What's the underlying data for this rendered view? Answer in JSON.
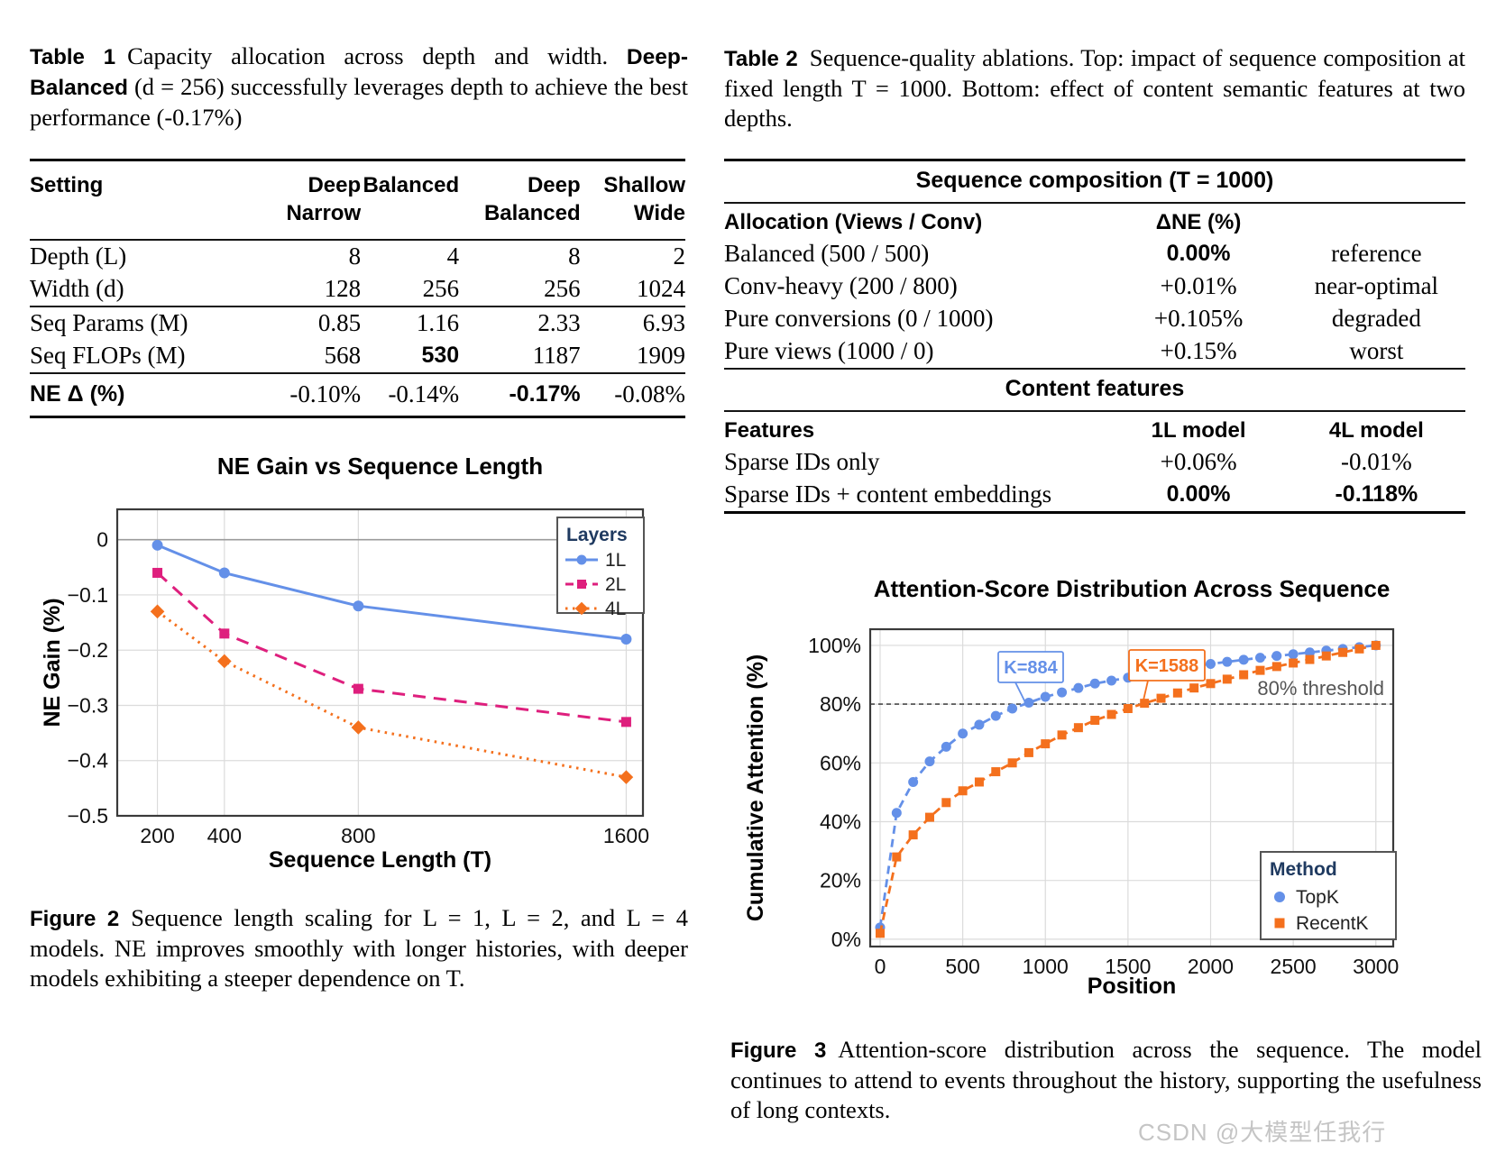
{
  "watermark": "CSDN @大模型任我行",
  "table1": {
    "caption_label": "Table 1",
    "caption_text1": "Capacity allocation across depth and width. ",
    "caption_bold": "Deep-Balanced",
    "caption_text2": " (d = 256) successfully leverages depth to achieve the best performance (-0.17%)",
    "headers": [
      "Setting",
      "Deep\nNarrow",
      "Balanced",
      "Deep\nBalanced",
      "Shallow\nWide"
    ],
    "groups": [
      [
        [
          "Depth (L)",
          "8",
          "4",
          "8",
          "2"
        ],
        [
          "Width (d)",
          "128",
          "256",
          "256",
          "1024"
        ]
      ],
      [
        [
          "Seq Params (M)",
          "0.85",
          "1.16",
          "2.33",
          "6.93"
        ],
        [
          "Seq FLOPs (M)",
          "568",
          {
            "t": "530",
            "b": true
          },
          "1187",
          "1909"
        ]
      ],
      [
        [
          {
            "t": "NE Δ (%)",
            "b": true
          },
          "-0.10%",
          "-0.14%",
          {
            "t": "-0.17%",
            "b": true
          },
          "-0.08%"
        ]
      ]
    ]
  },
  "table2": {
    "caption_label": "Table 2",
    "caption_text": "Sequence-quality ablations. Top: impact of sequence composition at fixed length T = 1000. Bottom: effect of content semantic features at two depths.",
    "sections": [
      {
        "title": "Sequence composition (T = 1000)",
        "headers": [
          "Allocation (Views / Conv)",
          "ΔNE (%)",
          ""
        ],
        "rows": [
          [
            "Balanced (500 / 500)",
            {
              "t": "0.00%",
              "b": true
            },
            "reference"
          ],
          [
            "Conv-heavy (200 / 800)",
            "+0.01%",
            "near-optimal"
          ],
          [
            "Pure conversions (0 / 1000)",
            "+0.105%",
            "degraded"
          ],
          [
            "Pure views (1000 / 0)",
            "+0.15%",
            "worst"
          ]
        ]
      },
      {
        "title": "Content features",
        "headers": [
          "Features",
          "1L model",
          "4L model"
        ],
        "rows": [
          [
            "Sparse IDs only",
            "+0.06%",
            "-0.01%"
          ],
          [
            "Sparse IDs + content embeddings",
            {
              "t": "0.00%",
              "b": true
            },
            {
              "t": "-0.118%",
              "b": true
            }
          ]
        ]
      }
    ]
  },
  "fig2_caption": {
    "label": "Figure 2",
    "text": "Sequence length scaling for L = 1, L = 2, and L = 4 models. NE improves smoothly with longer histories, with deeper models exhibiting a steeper dependence on T."
  },
  "fig3_caption": {
    "label": "Figure 3",
    "text": "Attention-score distribution across the sequence. The model continues to attend to events throughout the history, supporting the usefulness of long contexts."
  },
  "chart_data": [
    {
      "type": "line",
      "title": "NE Gain vs Sequence Length",
      "xlabel": "Sequence Length (T)",
      "ylabel": "NE Gain (%)",
      "x": [
        200,
        400,
        800,
        1600
      ],
      "series": [
        {
          "name": "1L",
          "color": "#6490E8",
          "marker": "circle",
          "dash": "solid",
          "values": [
            -0.01,
            -0.06,
            -0.12,
            -0.18
          ]
        },
        {
          "name": "2L",
          "color": "#DE1F7D",
          "marker": "square",
          "dash": "dashed",
          "values": [
            -0.06,
            -0.17,
            -0.27,
            -0.33
          ]
        },
        {
          "name": "4L",
          "color": "#F4701D",
          "marker": "diamond",
          "dash": "dotted",
          "values": [
            -0.13,
            -0.22,
            -0.34,
            -0.43
          ]
        }
      ],
      "legend_title": "Layers",
      "legend_position": "top-right",
      "xlim": [
        80,
        1650
      ],
      "ylim": [
        -0.5,
        0.055
      ],
      "xticks": [
        200,
        400,
        800,
        1600
      ],
      "xtick_labels": [
        "200",
        "400",
        "800",
        "1600"
      ],
      "yticks": [
        0,
        -0.1,
        -0.2,
        -0.3,
        -0.4,
        -0.5
      ],
      "ytick_labels": [
        "0",
        "−0.1",
        "−0.2",
        "−0.3",
        "−0.4",
        "−0.5"
      ],
      "grid": true,
      "zeroline": true
    },
    {
      "type": "line",
      "title": "Attention-Score Distribution Across Sequence",
      "xlabel": "Position",
      "ylabel": "Cumulative Attention (%)",
      "x": [
        0,
        100,
        200,
        300,
        400,
        500,
        600,
        700,
        800,
        900,
        1000,
        1100,
        1200,
        1300,
        1400,
        1500,
        1600,
        1700,
        1800,
        1900,
        2000,
        2100,
        2200,
        2300,
        2400,
        2500,
        2600,
        2700,
        2800,
        2900,
        3000
      ],
      "series": [
        {
          "name": "TopK",
          "color": "#6490E8",
          "marker": "circle",
          "dash": "dash",
          "values": [
            4,
            43,
            53.5,
            60.5,
            65.5,
            70,
            73,
            76,
            78.5,
            80.5,
            82.5,
            84,
            85.5,
            87,
            88,
            89,
            90,
            91,
            92,
            93,
            93.7,
            94.4,
            95.1,
            95.8,
            96.4,
            97,
            97.6,
            98.2,
            98.8,
            99.4,
            100
          ]
        },
        {
          "name": "RecentK",
          "color": "#F4701D",
          "marker": "square",
          "dash": "dash",
          "values": [
            2,
            28,
            35.5,
            41.5,
            46.5,
            50.5,
            53.5,
            57,
            60,
            63.5,
            66.5,
            69.5,
            72,
            74.5,
            76.5,
            78.5,
            80.3,
            82,
            83.8,
            85.5,
            87,
            88.5,
            90,
            91.5,
            92.8,
            94,
            95.2,
            96.4,
            97.6,
            98.8,
            100
          ]
        }
      ],
      "legend_title": "Method",
      "legend_position": "bottom-right",
      "threshold": {
        "y": 80,
        "label": "80% threshold"
      },
      "annotations": [
        {
          "label": "K=884",
          "x": 884,
          "y": 80,
          "color": "#6490E8"
        },
        {
          "label": "K=1588",
          "x": 1588,
          "y": 80,
          "color": "#F4701D"
        }
      ],
      "xlim": [
        -60,
        3105
      ],
      "ylim": [
        -2.5,
        105.5
      ],
      "xticks": [
        0,
        500,
        1000,
        1500,
        2000,
        2500,
        3000
      ],
      "xtick_labels": [
        "0",
        "500",
        "1000",
        "1500",
        "2000",
        "2500",
        "3000"
      ],
      "yticks": [
        0,
        20,
        40,
        60,
        80,
        100
      ],
      "ytick_labels": [
        "0%",
        "20%",
        "40%",
        "60%",
        "80%",
        "100%"
      ],
      "grid": true
    }
  ]
}
